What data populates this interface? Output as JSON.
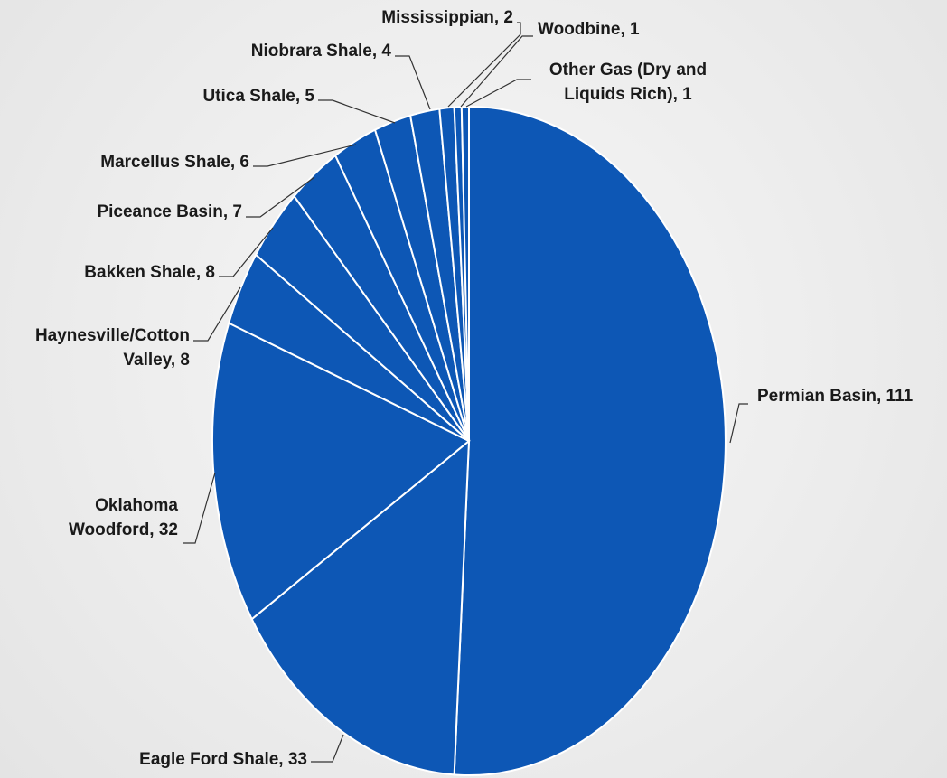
{
  "chart_data": {
    "type": "pie",
    "slices": [
      {
        "label": "Permian Basin",
        "value": 111
      },
      {
        "label": "Eagle Ford Shale",
        "value": 33
      },
      {
        "label": "Oklahoma Woodford",
        "value": 32
      },
      {
        "label": "Haynesville/Cotton Valley",
        "value": 8
      },
      {
        "label": "Bakken Shale",
        "value": 8
      },
      {
        "label": "Piceance Basin",
        "value": 7
      },
      {
        "label": "Marcellus Shale",
        "value": 6
      },
      {
        "label": "Utica Shale",
        "value": 5
      },
      {
        "label": "Niobrara Shale",
        "value": 4
      },
      {
        "label": "Mississippian",
        "value": 2
      },
      {
        "label": "Woodbine",
        "value": 1
      },
      {
        "label": "Other Gas (Dry and Liquids Rich)",
        "value": 1
      }
    ],
    "label_texts": [
      [
        "Permian Basin, 111"
      ],
      [
        "Eagle Ford Shale, 33"
      ],
      [
        "Oklahoma",
        "Woodford, 32"
      ],
      [
        "Haynesville/Cotton",
        "Valley, 8"
      ],
      [
        "Bakken Shale, 8"
      ],
      [
        "Piceance Basin, 7"
      ],
      [
        "Marcellus Shale, 6"
      ],
      [
        "Utica Shale, 5"
      ],
      [
        "Niobrara Shale, 4"
      ],
      [
        "Mississippian, 2"
      ],
      [
        "Woodbine, 1"
      ],
      [
        "Other Gas (Dry and",
        "Liquids Rich), 1"
      ]
    ],
    "colors": {
      "slice": "#0d57b5",
      "separator": "#ffffff",
      "text": "#1a1a1a",
      "background": "#efefef"
    }
  }
}
